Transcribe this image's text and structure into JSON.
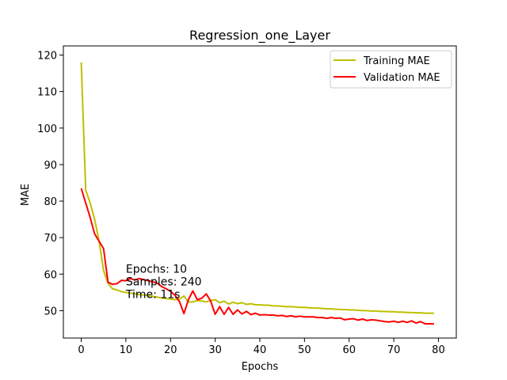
{
  "chart_data": {
    "type": "line",
    "title": "Regression_one_Layer",
    "xlabel": "Epochs",
    "ylabel": "MAE",
    "xlim": [
      -4,
      84
    ],
    "ylim": [
      42.5,
      122.5
    ],
    "xticks": [
      0,
      10,
      20,
      30,
      40,
      50,
      60,
      70,
      80
    ],
    "yticks": [
      50,
      60,
      70,
      80,
      90,
      100,
      110,
      120
    ],
    "grid": false,
    "legend_position": "top-right",
    "series": [
      {
        "name": "Training MAE",
        "color": "#bfbf00",
        "x": [
          0,
          1,
          2,
          3,
          4,
          5,
          6,
          7,
          8,
          9,
          10,
          11,
          12,
          13,
          14,
          15,
          16,
          17,
          18,
          19,
          20,
          21,
          22,
          23,
          24,
          25,
          26,
          27,
          28,
          29,
          30,
          31,
          32,
          33,
          34,
          35,
          36,
          37,
          38,
          39,
          40,
          41,
          42,
          43,
          44,
          45,
          46,
          47,
          48,
          49,
          50,
          51,
          52,
          53,
          54,
          55,
          56,
          57,
          58,
          59,
          60,
          61,
          62,
          63,
          64,
          65,
          66,
          67,
          68,
          69,
          70,
          71,
          72,
          73,
          74,
          75,
          76,
          77,
          78,
          79
        ],
        "values": [
          118.0,
          83.0,
          79.5,
          75.0,
          69.0,
          61.0,
          57.5,
          56.0,
          55.7,
          55.2,
          55.0,
          54.8,
          54.6,
          54.4,
          54.3,
          54.1,
          53.9,
          53.7,
          53.5,
          53.3,
          53.2,
          53.0,
          53.2,
          54.0,
          52.4,
          52.4,
          52.8,
          52.6,
          52.4,
          52.8,
          53.0,
          52.2,
          52.6,
          51.8,
          52.3,
          51.9,
          52.2,
          51.7,
          51.9,
          51.6,
          51.6,
          51.5,
          51.5,
          51.3,
          51.3,
          51.2,
          51.1,
          51.1,
          51.0,
          50.9,
          50.9,
          50.8,
          50.7,
          50.7,
          50.6,
          50.5,
          50.5,
          50.4,
          50.3,
          50.3,
          50.2,
          50.2,
          50.1,
          50.0,
          50.0,
          49.9,
          49.9,
          49.8,
          49.8,
          49.7,
          49.7,
          49.6,
          49.6,
          49.5,
          49.5,
          49.4,
          49.4,
          49.3,
          49.3,
          49.3
        ]
      },
      {
        "name": "Validation MAE",
        "color": "#ff0000",
        "x": [
          0,
          1,
          2,
          3,
          4,
          5,
          6,
          7,
          8,
          9,
          10,
          11,
          12,
          13,
          14,
          15,
          16,
          17,
          18,
          19,
          20,
          21,
          22,
          23,
          24,
          25,
          26,
          27,
          28,
          29,
          30,
          31,
          32,
          33,
          34,
          35,
          36,
          37,
          38,
          39,
          40,
          41,
          42,
          43,
          44,
          45,
          46,
          47,
          48,
          49,
          50,
          51,
          52,
          53,
          54,
          55,
          56,
          57,
          58,
          59,
          60,
          61,
          62,
          63,
          64,
          65,
          66,
          67,
          68,
          69,
          70,
          71,
          72,
          73,
          74,
          75,
          76,
          77,
          78,
          79
        ],
        "values": [
          83.5,
          79.5,
          75.5,
          71.0,
          69.0,
          67.0,
          57.8,
          57.2,
          57.4,
          58.3,
          58.2,
          58.8,
          58.4,
          58.8,
          58.5,
          58.2,
          57.9,
          57.6,
          56.6,
          56.0,
          55.3,
          54.2,
          52.5,
          49.2,
          53.0,
          55.4,
          53.0,
          53.4,
          54.6,
          52.6,
          49.0,
          51.1,
          49.0,
          50.9,
          49.0,
          50.2,
          49.1,
          49.8,
          48.9,
          49.3,
          48.8,
          48.9,
          48.8,
          48.8,
          48.6,
          48.7,
          48.4,
          48.6,
          48.3,
          48.5,
          48.3,
          48.3,
          48.3,
          48.1,
          48.1,
          47.9,
          48.1,
          47.9,
          48.0,
          47.5,
          47.7,
          47.8,
          47.4,
          47.7,
          47.3,
          47.5,
          47.4,
          47.2,
          47.0,
          46.9,
          47.1,
          46.8,
          47.1,
          46.8,
          47.2,
          46.6,
          47.0,
          46.4,
          46.4,
          46.4
        ]
      }
    ],
    "annotation": {
      "x": 10,
      "y": 61,
      "lines": [
        "Epochs: 10",
        "Samples: 240",
        "Time: 11s"
      ]
    }
  }
}
